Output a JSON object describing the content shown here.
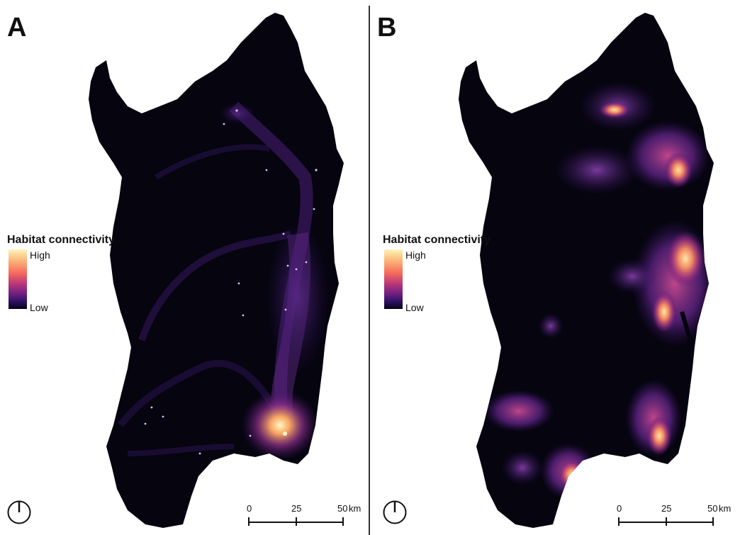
{
  "panels": [
    {
      "letter": "A",
      "legend": {
        "title": "Habitat connectivity",
        "high": "High",
        "low": "Low"
      },
      "scale": {
        "tick_0": "0",
        "tick_1": "25",
        "tick_2": "50",
        "unit": "km"
      },
      "north_arrow": "north-arrow-icon",
      "map_style": "sparse corridors with a bright hotspot in the southeast"
    },
    {
      "letter": "B",
      "legend": {
        "title": "Habitat connectivity",
        "high": "High",
        "low": "Low"
      },
      "scale": {
        "tick_0": "0",
        "tick_1": "25",
        "tick_2": "50",
        "unit": "km"
      },
      "north_arrow": "north-arrow-icon",
      "map_style": "broad bright zones along the east and southwest"
    }
  ],
  "colors": {
    "land_dark": "#05040f",
    "ramp_high": "#fcf3b8",
    "ramp_mid": "#b8367a",
    "ramp_low": "#050416",
    "purple": "#5a2a8a"
  }
}
